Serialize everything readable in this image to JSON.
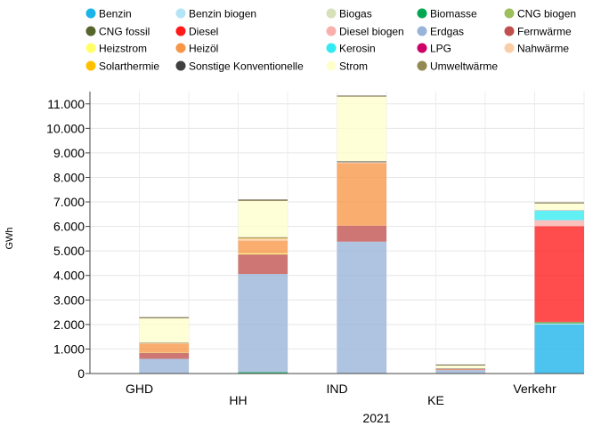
{
  "chart_data": {
    "type": "bar",
    "stacked": true,
    "title": "",
    "xlabel": "2021",
    "ylabel": "GWh",
    "ylim": [
      0,
      11500
    ],
    "yticks": [
      0,
      1000,
      2000,
      3000,
      4000,
      5000,
      6000,
      7000,
      8000,
      9000,
      10000,
      11000
    ],
    "ytick_labels": [
      "0",
      "1.000",
      "2.000",
      "3.000",
      "4.000",
      "5.000",
      "6.000",
      "7.000",
      "8.000",
      "9.000",
      "10.000",
      "11.000"
    ],
    "categories": [
      "GHD",
      "HH",
      "IND",
      "KE",
      "Verkehr"
    ],
    "grid": true,
    "legend_position": "top",
    "series": [
      {
        "name": "Benzin",
        "color": "#1ab4ea",
        "values": [
          0,
          0,
          0,
          0,
          2000
        ]
      },
      {
        "name": "Benzin biogen",
        "color": "#b4e5f6",
        "values": [
          0,
          0,
          0,
          0,
          30
        ]
      },
      {
        "name": "Biogas",
        "color": "#d7e0b8",
        "values": [
          0,
          0,
          0,
          0,
          0
        ]
      },
      {
        "name": "Biomasse",
        "color": "#00a650",
        "values": [
          20,
          60,
          10,
          0,
          20
        ]
      },
      {
        "name": "CNG biogen",
        "color": "#9cbf5c",
        "values": [
          0,
          0,
          0,
          0,
          30
        ]
      },
      {
        "name": "CNG fossil",
        "color": "#55652b",
        "values": [
          0,
          0,
          0,
          0,
          30
        ]
      },
      {
        "name": "Diesel",
        "color": "#ff1a1a",
        "values": [
          0,
          0,
          0,
          0,
          3900
        ]
      },
      {
        "name": "Diesel biogen",
        "color": "#f8b0ac",
        "values": [
          0,
          0,
          0,
          0,
          240
        ]
      },
      {
        "name": "Erdgas",
        "color": "#98b4d9",
        "values": [
          580,
          4000,
          5370,
          140,
          10
        ]
      },
      {
        "name": "Fernwärme",
        "color": "#c0504d",
        "values": [
          250,
          800,
          650,
          30,
          0
        ]
      },
      {
        "name": "Heizstrom",
        "color": "#ffff66",
        "values": [
          20,
          40,
          0,
          0,
          0
        ]
      },
      {
        "name": "Heizöl",
        "color": "#f79646",
        "values": [
          350,
          520,
          2550,
          20,
          0
        ]
      },
      {
        "name": "Kerosin",
        "color": "#33eaf0",
        "values": [
          0,
          0,
          0,
          0,
          390
        ]
      },
      {
        "name": "LPG",
        "color": "#cc0066",
        "values": [
          0,
          0,
          0,
          0,
          10
        ]
      },
      {
        "name": "Nahwärme",
        "color": "#facda7",
        "values": [
          10,
          80,
          40,
          0,
          0
        ]
      },
      {
        "name": "Solarthermie",
        "color": "#ffc000",
        "values": [
          10,
          30,
          0,
          0,
          0
        ]
      },
      {
        "name": "Sonstige Konventionelle",
        "color": "#404040",
        "values": [
          20,
          30,
          40,
          20,
          0
        ]
      },
      {
        "name": "Strom",
        "color": "#ffffcc",
        "values": [
          1000,
          1480,
          2650,
          130,
          300
        ]
      },
      {
        "name": "Umweltwärme",
        "color": "#938953",
        "values": [
          20,
          40,
          10,
          10,
          0
        ]
      }
    ],
    "legend_order": [
      [
        "Benzin",
        "Benzin biogen",
        "Biogas",
        "Biomasse",
        "CNG biogen"
      ],
      [
        "CNG fossil",
        "Diesel",
        "Diesel biogen",
        "Erdgas",
        "Fernwärme"
      ],
      [
        "Heizstrom",
        "Heizöl",
        "Kerosin",
        "LPG",
        "Nahwärme"
      ],
      [
        "Solarthermie",
        "Sonstige Konventionelle",
        "Strom",
        "Umweltwärme"
      ]
    ]
  }
}
